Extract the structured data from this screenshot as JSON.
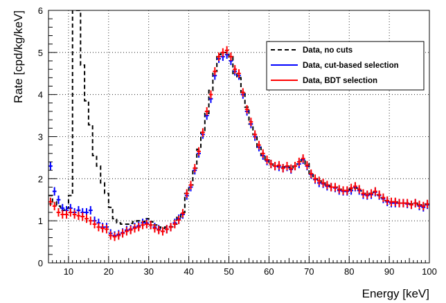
{
  "chart_data": {
    "type": "line",
    "title": "",
    "xlabel": "Energy [keV]",
    "ylabel": "Rate [cpd/kg/keV]",
    "xlim": [
      5,
      100
    ],
    "ylim": [
      0,
      6
    ],
    "xticks": [
      "10",
      "20",
      "30",
      "40",
      "50",
      "60",
      "70",
      "80",
      "90",
      "100"
    ],
    "yticks": [
      "0",
      "1",
      "2",
      "3",
      "4",
      "5",
      "6"
    ],
    "grid": true,
    "legend_position": "top-right",
    "colors": {
      "no_cuts": "#000000",
      "cut_based": "#0000ff",
      "bdt": "#ff0000"
    },
    "series": [
      {
        "name": "Data, no cuts",
        "style": "dashed-step",
        "x": [
          5,
          6,
          7,
          8,
          9,
          10,
          11,
          12,
          13,
          14,
          15,
          16,
          17,
          18,
          19,
          20,
          21,
          22,
          23,
          24,
          25,
          26,
          27,
          28,
          29,
          30,
          31,
          32,
          33,
          34,
          35,
          36,
          37,
          38,
          39,
          40,
          41,
          42,
          43,
          44,
          45,
          46,
          47,
          48,
          49,
          50,
          51,
          52,
          53,
          54,
          55,
          56,
          57,
          58,
          59,
          60,
          61,
          62,
          63,
          64,
          65,
          66,
          67,
          68,
          69,
          70,
          71,
          72,
          73,
          74,
          75,
          76,
          77,
          78,
          79,
          80,
          81,
          82,
          83,
          84,
          85,
          86,
          87,
          88,
          89,
          90,
          91,
          92,
          93,
          94,
          95,
          96,
          97,
          98,
          99,
          100
        ],
        "y": [
          1.6,
          1.45,
          1.35,
          1.25,
          1.3,
          1.6,
          6.5,
          6.1,
          4.7,
          3.85,
          3.28,
          2.55,
          2.3,
          1.9,
          1.65,
          1.32,
          1.05,
          0.95,
          0.92,
          0.92,
          0.94,
          0.98,
          1.0,
          0.98,
          1.05,
          0.98,
          0.9,
          0.85,
          0.82,
          0.85,
          0.86,
          0.92,
          1.08,
          1.2,
          1.65,
          1.85,
          2.25,
          2.7,
          3.1,
          3.55,
          4.1,
          4.55,
          4.95,
          5.0,
          5.0,
          4.9,
          4.5,
          4.4,
          4.05,
          3.7,
          3.3,
          3.05,
          2.75,
          2.55,
          2.45,
          2.35,
          2.3,
          2.3,
          2.28,
          2.3,
          2.26,
          2.3,
          2.35,
          2.45,
          2.35,
          2.1,
          2.0,
          1.95,
          1.9,
          1.85,
          1.82,
          1.8,
          1.75,
          1.72,
          1.7,
          1.75,
          1.78,
          1.72,
          1.65,
          1.62,
          1.65,
          1.68,
          1.62,
          1.55,
          1.48,
          1.45,
          1.45,
          1.42,
          1.42,
          1.42,
          1.4,
          1.42,
          1.38,
          1.35,
          1.4,
          1.4
        ]
      },
      {
        "name": "Data, cut-based selection",
        "style": "errorbar",
        "x": [
          5.5,
          6.5,
          7.5,
          8.5,
          9.5,
          10.5,
          11.5,
          12.5,
          13.5,
          14.5,
          15.5,
          16.5,
          17.5,
          18.5,
          19.5,
          20.5,
          21.5,
          22.5,
          23.5,
          24.5,
          25.5,
          26.5,
          27.5,
          28.5,
          29.5,
          30.5,
          31.5,
          32.5,
          33.5,
          34.5,
          35.5,
          36.5,
          37.5,
          38.5,
          39.5,
          40.5,
          41.5,
          42.5,
          43.5,
          44.5,
          45.5,
          46.5,
          47.5,
          48.5,
          49.5,
          50.5,
          51.5,
          52.5,
          53.5,
          54.5,
          55.5,
          56.5,
          57.5,
          58.5,
          59.5,
          60.5,
          61.5,
          62.5,
          63.5,
          64.5,
          65.5,
          66.5,
          67.5,
          68.5,
          69.5,
          70.5,
          71.5,
          72.5,
          73.5,
          74.5,
          75.5,
          76.5,
          77.5,
          78.5,
          79.5,
          80.5,
          81.5,
          82.5,
          83.5,
          84.5,
          85.5,
          86.5,
          87.5,
          88.5,
          89.5,
          90.5,
          91.5,
          92.5,
          93.5,
          94.5,
          95.5,
          96.5,
          97.5,
          98.5,
          99.5
        ],
        "y": [
          2.3,
          1.7,
          1.5,
          1.3,
          1.25,
          1.3,
          1.2,
          1.25,
          1.2,
          1.2,
          1.25,
          1.0,
          0.95,
          0.85,
          0.85,
          0.7,
          0.65,
          0.68,
          0.72,
          0.78,
          0.8,
          0.85,
          0.88,
          0.95,
          0.95,
          0.9,
          0.85,
          0.8,
          0.75,
          0.8,
          0.85,
          0.95,
          1.05,
          1.15,
          1.6,
          1.8,
          2.2,
          2.6,
          3.05,
          3.5,
          3.9,
          4.45,
          4.85,
          4.9,
          4.95,
          4.8,
          4.55,
          4.45,
          4.0,
          3.6,
          3.3,
          3.0,
          2.75,
          2.55,
          2.42,
          2.35,
          2.3,
          2.28,
          2.25,
          2.28,
          2.22,
          2.3,
          2.35,
          2.45,
          2.3,
          2.1,
          1.98,
          1.9,
          1.88,
          1.82,
          1.8,
          1.78,
          1.72,
          1.7,
          1.7,
          1.72,
          1.8,
          1.72,
          1.62,
          1.6,
          1.62,
          1.68,
          1.6,
          1.52,
          1.45,
          1.42,
          1.42,
          1.42,
          1.42,
          1.4,
          1.38,
          1.42,
          1.35,
          1.32,
          1.38
        ],
        "yerr": 0.1
      },
      {
        "name": "Data, BDT selection",
        "style": "errorbar",
        "x": [
          5.5,
          6.5,
          7.5,
          8.5,
          9.5,
          10.5,
          11.5,
          12.5,
          13.5,
          14.5,
          15.5,
          16.5,
          17.5,
          18.5,
          19.5,
          20.5,
          21.5,
          22.5,
          23.5,
          24.5,
          25.5,
          26.5,
          27.5,
          28.5,
          29.5,
          30.5,
          31.5,
          32.5,
          33.5,
          34.5,
          35.5,
          36.5,
          37.5,
          38.5,
          39.5,
          40.5,
          41.5,
          42.5,
          43.5,
          44.5,
          45.5,
          46.5,
          47.5,
          48.5,
          49.5,
          50.5,
          51.5,
          52.5,
          53.5,
          54.5,
          55.5,
          56.5,
          57.5,
          58.5,
          59.5,
          60.5,
          61.5,
          62.5,
          63.5,
          64.5,
          65.5,
          66.5,
          67.5,
          68.5,
          69.5,
          70.5,
          71.5,
          72.5,
          73.5,
          74.5,
          75.5,
          76.5,
          77.5,
          78.5,
          79.5,
          80.5,
          81.5,
          82.5,
          83.5,
          84.5,
          85.5,
          86.5,
          87.5,
          88.5,
          89.5,
          90.5,
          91.5,
          92.5,
          93.5,
          94.5,
          95.5,
          96.5,
          97.5,
          98.5,
          99.5
        ],
        "y": [
          1.45,
          1.35,
          1.2,
          1.15,
          1.15,
          1.2,
          1.15,
          1.12,
          1.1,
          1.05,
          1.0,
          0.92,
          0.85,
          0.82,
          0.8,
          0.65,
          0.62,
          0.65,
          0.7,
          0.75,
          0.78,
          0.82,
          0.85,
          0.9,
          0.92,
          0.9,
          0.82,
          0.78,
          0.75,
          0.8,
          0.85,
          0.92,
          1.02,
          1.18,
          1.65,
          1.85,
          2.25,
          2.65,
          3.1,
          3.6,
          4.0,
          4.55,
          4.9,
          5.0,
          5.05,
          4.9,
          4.6,
          4.5,
          4.05,
          3.65,
          3.35,
          3.05,
          2.8,
          2.6,
          2.45,
          2.35,
          2.3,
          2.32,
          2.25,
          2.3,
          2.24,
          2.3,
          2.4,
          2.48,
          2.32,
          2.12,
          2.0,
          1.95,
          1.9,
          1.85,
          1.8,
          1.8,
          1.75,
          1.72,
          1.72,
          1.78,
          1.82,
          1.75,
          1.65,
          1.62,
          1.65,
          1.7,
          1.62,
          1.55,
          1.48,
          1.45,
          1.45,
          1.42,
          1.42,
          1.42,
          1.38,
          1.42,
          1.38,
          1.35,
          1.4
        ],
        "yerr": 0.1
      }
    ]
  }
}
